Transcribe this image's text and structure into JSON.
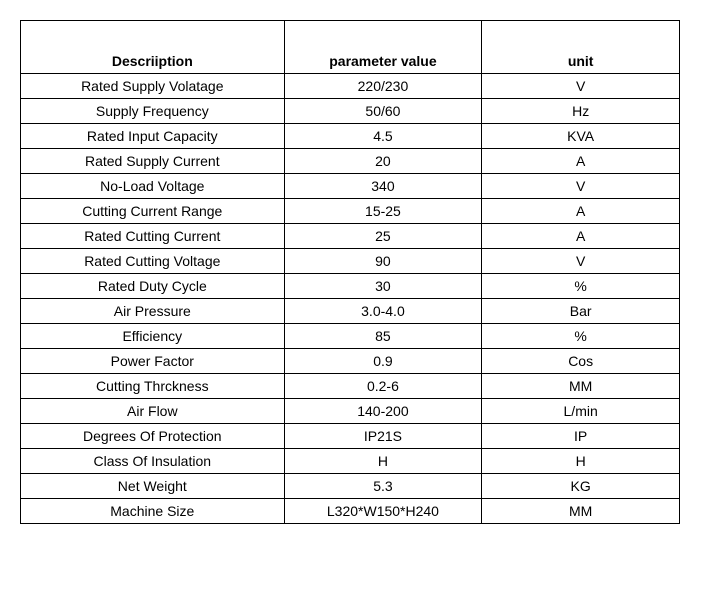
{
  "table": {
    "columns": [
      "Descriiption",
      "parameter value",
      "unit"
    ],
    "col_widths_percent": [
      40,
      30,
      30
    ],
    "header_fontsize": 14,
    "header_fontweight": "bold",
    "cell_fontsize": 14,
    "border_color": "#000000",
    "background_color": "#ffffff",
    "text_color": "#000000",
    "font_family": "Tahoma, Arial, sans-serif",
    "rows": [
      [
        "Rated Supply Volatage",
        "220/230",
        "V"
      ],
      [
        "Supply Frequency",
        "50/60",
        "Hz"
      ],
      [
        "Rated Input Capacity",
        "4.5",
        "KVA"
      ],
      [
        "Rated Supply Current",
        "20",
        "A"
      ],
      [
        "No-Load Voltage",
        "340",
        "V"
      ],
      [
        "Cutting Current Range",
        "15-25",
        "A"
      ],
      [
        "Rated Cutting Current",
        "25",
        "A"
      ],
      [
        "Rated Cutting Voltage",
        "90",
        "V"
      ],
      [
        "Rated Duty Cycle",
        "30",
        "%"
      ],
      [
        "Air Pressure",
        "3.0-4.0",
        "Bar"
      ],
      [
        "Efficiency",
        "85",
        "%"
      ],
      [
        "Power Factor",
        "0.9",
        "Cos"
      ],
      [
        "Cutting Thrckness",
        "0.2-6",
        "MM"
      ],
      [
        "Air Flow",
        "140-200",
        "L/min"
      ],
      [
        "Degrees Of Protection",
        "IP21S",
        "IP"
      ],
      [
        "Class Of Insulation",
        "H",
        "H"
      ],
      [
        "Net Weight",
        "5.3",
        "KG"
      ],
      [
        "Machine Size",
        "L320*W150*H240",
        "MM"
      ]
    ]
  }
}
